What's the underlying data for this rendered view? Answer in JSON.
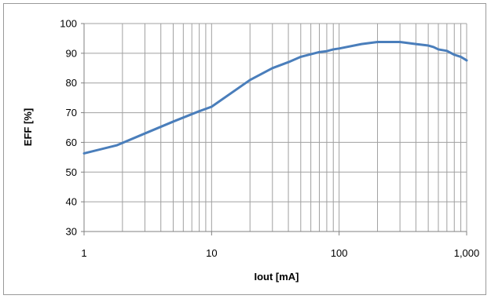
{
  "chart_data": {
    "type": "line",
    "xscale": "log",
    "xlim": [
      1,
      1000
    ],
    "ylim": [
      30,
      100
    ],
    "ystep": 10,
    "grid": true,
    "legend": "none",
    "xlabel": "Iout [mA]",
    "ylabel": "EFF [%]",
    "xticks": [
      1,
      10,
      100,
      1000
    ],
    "xtick_labels": [
      "1",
      "10",
      "100",
      "1,000"
    ],
    "yticks": [
      30,
      40,
      50,
      60,
      70,
      80,
      90,
      100
    ],
    "ytick_labels": [
      "30",
      "40",
      "50",
      "60",
      "70",
      "80",
      "90",
      "100"
    ],
    "series": [
      {
        "color": "#4a7ebb",
        "x": [
          1,
          1.8,
          3,
          5,
          8,
          10,
          20,
          30,
          40,
          50,
          70,
          80,
          90,
          100,
          150,
          200,
          300,
          400,
          500,
          550,
          600,
          700,
          800,
          900,
          1000
        ],
        "y": [
          56.3,
          59,
          63,
          67,
          70.5,
          72,
          81,
          85,
          87,
          88.8,
          90.4,
          90.7,
          91.3,
          91.6,
          93.1,
          93.8,
          93.8,
          93.1,
          92.6,
          92.1,
          91.3,
          90.8,
          89.5,
          88.8,
          87.6
        ]
      }
    ],
    "gridline_color": "#a0a0a0"
  }
}
